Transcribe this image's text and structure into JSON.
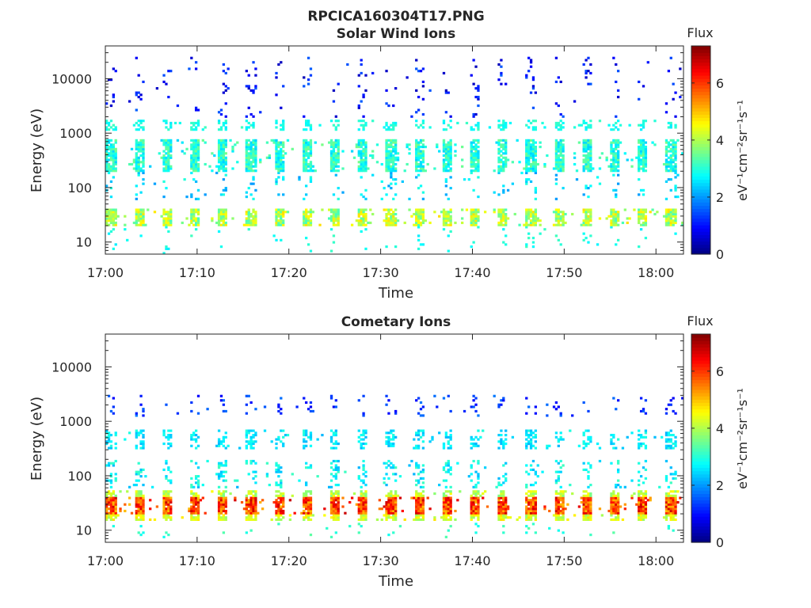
{
  "figure_title": "RPCICA160304T17.PNG",
  "chart_data": [
    {
      "type": "heatmap",
      "title": "Solar Wind Ions",
      "xlabel": "Time",
      "ylabel": "Energy (eV)",
      "yscale": "log",
      "ylim": [
        6,
        40000
      ],
      "xlim": [
        "17:00",
        "18:03"
      ],
      "xticks": [
        "17:00",
        "17:10",
        "17:20",
        "17:30",
        "17:40",
        "17:50",
        "18:00"
      ],
      "yticks": [
        "10",
        "100",
        "1000",
        "10000"
      ],
      "colorbar": {
        "label": "Flux",
        "unit": "eV⁻¹cm⁻²sr⁻¹s⁻¹",
        "range": [
          0,
          7.3
        ],
        "ticks": [
          "0",
          "2",
          "4",
          "6"
        ],
        "colormap": "jet"
      },
      "sweep_period_min": 3.05,
      "bands": [
        {
          "energy_eV": [
            20,
            40
          ],
          "flux": [
            3.2,
            4.8
          ],
          "presence": 0.9
        },
        {
          "energy_eV": [
            200,
            800
          ],
          "flux": [
            2.4,
            3.6
          ],
          "presence": 0.85
        },
        {
          "energy_eV": [
            1100,
            1800
          ],
          "flux": [
            2.6,
            3.2
          ],
          "presence": 0.5
        },
        {
          "energy_eV": [
            60,
            200
          ],
          "flux": [
            2.0,
            3.0
          ],
          "presence": 0.15
        },
        {
          "energy_eV": [
            2000,
            25000
          ],
          "flux": [
            0.4,
            1.6
          ],
          "presence": 0.08
        },
        {
          "energy_eV": [
            6,
            20
          ],
          "flux": [
            2.6,
            3.2
          ],
          "presence": 0.06
        }
      ]
    },
    {
      "type": "heatmap",
      "title": "Cometary Ions",
      "xlabel": "Time",
      "ylabel": "Energy (eV)",
      "yscale": "log",
      "ylim": [
        6,
        40000
      ],
      "xlim": [
        "17:00",
        "18:03"
      ],
      "xticks": [
        "17:00",
        "17:10",
        "17:20",
        "17:30",
        "17:40",
        "17:50",
        "18:00"
      ],
      "yticks": [
        "10",
        "100",
        "1000",
        "10000"
      ],
      "colorbar": {
        "label": "Flux",
        "unit": "eV⁻¹cm⁻²sr⁻¹s⁻¹",
        "range": [
          0,
          7.3
        ],
        "ticks": [
          "0",
          "2",
          "4",
          "6"
        ],
        "colormap": "jet"
      },
      "sweep_period_min": 3.05,
      "bands": [
        {
          "energy_eV": [
            20,
            40
          ],
          "flux": [
            5.0,
            6.8
          ],
          "presence": 0.95
        },
        {
          "energy_eV": [
            15,
            20
          ],
          "flux": [
            3.8,
            4.8
          ],
          "presence": 0.8
        },
        {
          "energy_eV": [
            40,
            55
          ],
          "flux": [
            3.6,
            4.6
          ],
          "presence": 0.7
        },
        {
          "energy_eV": [
            60,
            200
          ],
          "flux": [
            2.2,
            3.2
          ],
          "presence": 0.25
        },
        {
          "energy_eV": [
            300,
            700
          ],
          "flux": [
            2.2,
            3.0
          ],
          "presence": 0.45
        },
        {
          "energy_eV": [
            1200,
            3200
          ],
          "flux": [
            0.8,
            1.8
          ],
          "presence": 0.12
        },
        {
          "energy_eV": [
            7,
            14
          ],
          "flux": [
            2.8,
            3.4
          ],
          "presence": 0.08
        }
      ]
    }
  ]
}
